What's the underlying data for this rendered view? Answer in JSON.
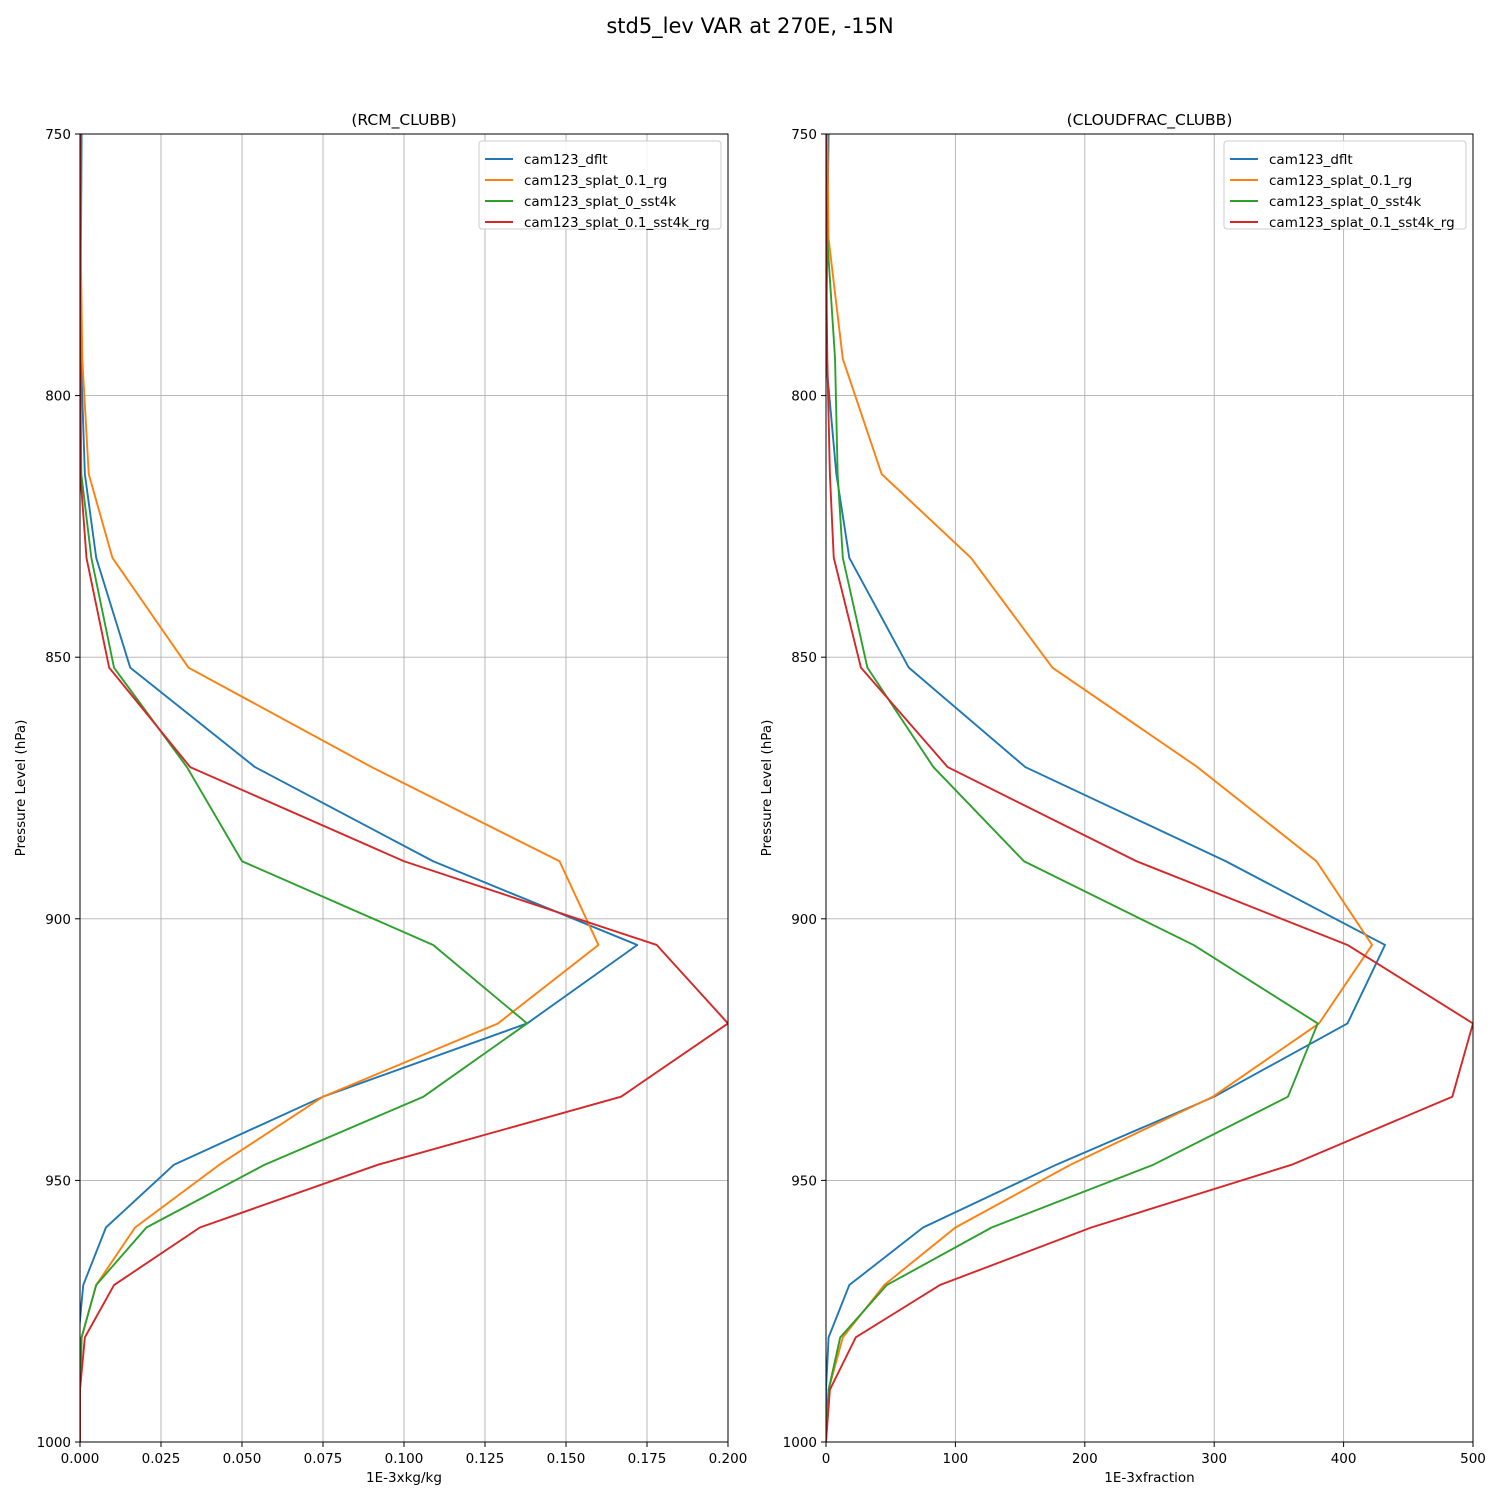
{
  "figure": {
    "title": "std5_lev VAR at 270E, -15N"
  },
  "chart_data": [
    {
      "type": "line",
      "title": "(RCM_CLUBB)",
      "xlabel": "1E-3xkg/kg",
      "ylabel": "Pressure Level (hPa)",
      "xlim": [
        0,
        0.2
      ],
      "ylim": [
        1000,
        750
      ],
      "xticks": [
        0,
        0.025,
        0.05,
        0.075,
        0.1,
        0.125,
        0.15,
        0.175,
        0.2
      ],
      "xtick_labels": [
        "0.000",
        "0.025",
        "0.050",
        "0.075",
        "0.100",
        "0.125",
        "0.150",
        "0.175",
        "0.200"
      ],
      "yticks": [
        750,
        800,
        850,
        900,
        950,
        1000
      ],
      "ytick_labels": [
        "750",
        "800",
        "850",
        "900",
        "950",
        "1000"
      ],
      "grid": true,
      "legend": "upper-right",
      "series": [
        {
          "name": "cam123_dflt",
          "color": "#1f77b4",
          "points": [
            [
              0.0005,
              750
            ],
            [
              0.0003,
              770
            ],
            [
              0.0003,
              793
            ],
            [
              0.0015,
              815
            ],
            [
              0.005,
              831
            ],
            [
              0.0155,
              852
            ],
            [
              0.054,
              871
            ],
            [
              0.109,
              889
            ],
            [
              0.172,
              905
            ],
            [
              0.138,
              920
            ],
            [
              0.075,
              934
            ],
            [
              0.029,
              947
            ],
            [
              0.008,
              959
            ],
            [
              0.001,
              970
            ],
            [
              -0.0005,
              980
            ],
            [
              0,
              990
            ],
            [
              0,
              1000
            ]
          ]
        },
        {
          "name": "cam123_splat_0.1_rg",
          "color": "#ff7f0e",
          "points": [
            [
              0,
              750
            ],
            [
              0.0002,
              770
            ],
            [
              0.0007,
              793
            ],
            [
              0.0027,
              815
            ],
            [
              0.01,
              831
            ],
            [
              0.0335,
              852
            ],
            [
              0.09,
              871
            ],
            [
              0.148,
              889
            ],
            [
              0.16,
              905
            ],
            [
              0.129,
              920
            ],
            [
              0.075,
              934
            ],
            [
              0.043,
              947
            ],
            [
              0.017,
              959
            ],
            [
              0.005,
              970
            ],
            [
              0.0005,
              980
            ],
            [
              0,
              990
            ],
            [
              0,
              1000
            ]
          ]
        },
        {
          "name": "cam123_splat_0_sst4k",
          "color": "#2ca02c",
          "points": [
            [
              0,
              750
            ],
            [
              0,
              770
            ],
            [
              0.0001,
              793
            ],
            [
              0.0004,
              815
            ],
            [
              0.0035,
              831
            ],
            [
              0.0105,
              852
            ],
            [
              0.033,
              871
            ],
            [
              0.05,
              889
            ],
            [
              0.109,
              905
            ],
            [
              0.138,
              920
            ],
            [
              0.106,
              934
            ],
            [
              0.057,
              947
            ],
            [
              0.0205,
              959
            ],
            [
              0.005,
              970
            ],
            [
              0.0005,
              980
            ],
            [
              0,
              990
            ],
            [
              0,
              1000
            ]
          ]
        },
        {
          "name": "cam123_splat_0.1_sst4k_rg",
          "color": "#d62728",
          "points": [
            [
              0,
              750
            ],
            [
              0,
              770
            ],
            [
              0,
              793
            ],
            [
              0.0001,
              815
            ],
            [
              0.002,
              831
            ],
            [
              0.009,
              852
            ],
            [
              0.034,
              871
            ],
            [
              0.1,
              889
            ],
            [
              0.178,
              905
            ],
            [
              0.2,
              920
            ],
            [
              0.167,
              934
            ],
            [
              0.092,
              947
            ],
            [
              0.037,
              959
            ],
            [
              0.0105,
              970
            ],
            [
              0.0015,
              980
            ],
            [
              0,
              990
            ],
            [
              0,
              1000
            ]
          ]
        }
      ]
    },
    {
      "type": "line",
      "title": "(CLOUDFRAC_CLUBB)",
      "xlabel": "1E-3xfraction",
      "ylabel": "Pressure Level (hPa)",
      "xlim": [
        0,
        500
      ],
      "ylim": [
        1000,
        750
      ],
      "xticks": [
        0,
        100,
        200,
        300,
        400,
        500
      ],
      "xtick_labels": [
        "0",
        "100",
        "200",
        "300",
        "400",
        "500"
      ],
      "yticks": [
        750,
        800,
        850,
        900,
        950,
        1000
      ],
      "ytick_labels": [
        "750",
        "800",
        "850",
        "900",
        "950",
        "1000"
      ],
      "grid": true,
      "legend": "upper-right",
      "series": [
        {
          "name": "cam123_dflt",
          "color": "#1f77b4",
          "points": [
            [
              2,
              750
            ],
            [
              1,
              770
            ],
            [
              0,
              793
            ],
            [
              8,
              815
            ],
            [
              18,
              831
            ],
            [
              64,
              852
            ],
            [
              154,
              871
            ],
            [
              309,
              889
            ],
            [
              432,
              905
            ],
            [
              403,
              920
            ],
            [
              300,
              934
            ],
            [
              178,
              947
            ],
            [
              75,
              959
            ],
            [
              18,
              970
            ],
            [
              2,
              980
            ],
            [
              0,
              990
            ],
            [
              0,
              1000
            ]
          ]
        },
        {
          "name": "cam123_splat_0.1_rg",
          "color": "#ff7f0e",
          "points": [
            [
              1,
              750
            ],
            [
              2,
              770
            ],
            [
              13,
              793
            ],
            [
              43,
              815
            ],
            [
              112,
              831
            ],
            [
              175,
              852
            ],
            [
              287,
              871
            ],
            [
              379,
              889
            ],
            [
              422,
              905
            ],
            [
              381,
              920
            ],
            [
              299,
              934
            ],
            [
              189,
              947
            ],
            [
              100,
              959
            ],
            [
              45,
              970
            ],
            [
              13,
              980
            ],
            [
              2,
              990
            ],
            [
              0,
              1000
            ]
          ]
        },
        {
          "name": "cam123_splat_0_sst4k",
          "color": "#2ca02c",
          "points": [
            [
              0,
              750
            ],
            [
              1,
              770
            ],
            [
              7,
              793
            ],
            [
              9,
              815
            ],
            [
              13,
              831
            ],
            [
              32,
              852
            ],
            [
              83,
              871
            ],
            [
              153,
              889
            ],
            [
              284,
              905
            ],
            [
              380,
              920
            ],
            [
              357,
              934
            ],
            [
              253,
              947
            ],
            [
              128,
              959
            ],
            [
              47,
              970
            ],
            [
              11,
              980
            ],
            [
              2,
              990
            ],
            [
              0,
              1000
            ]
          ]
        },
        {
          "name": "cam123_splat_0.1_sst4k_rg",
          "color": "#d62728",
          "points": [
            [
              0,
              750
            ],
            [
              0,
              770
            ],
            [
              1,
              793
            ],
            [
              3,
              815
            ],
            [
              6,
              831
            ],
            [
              27,
              852
            ],
            [
              94,
              871
            ],
            [
              240,
              889
            ],
            [
              403,
              905
            ],
            [
              500,
              920
            ],
            [
              484,
              934
            ],
            [
              360,
              947
            ],
            [
              205,
              959
            ],
            [
              88,
              970
            ],
            [
              23,
              980
            ],
            [
              3,
              990
            ],
            [
              0,
              1000
            ]
          ]
        }
      ]
    }
  ]
}
